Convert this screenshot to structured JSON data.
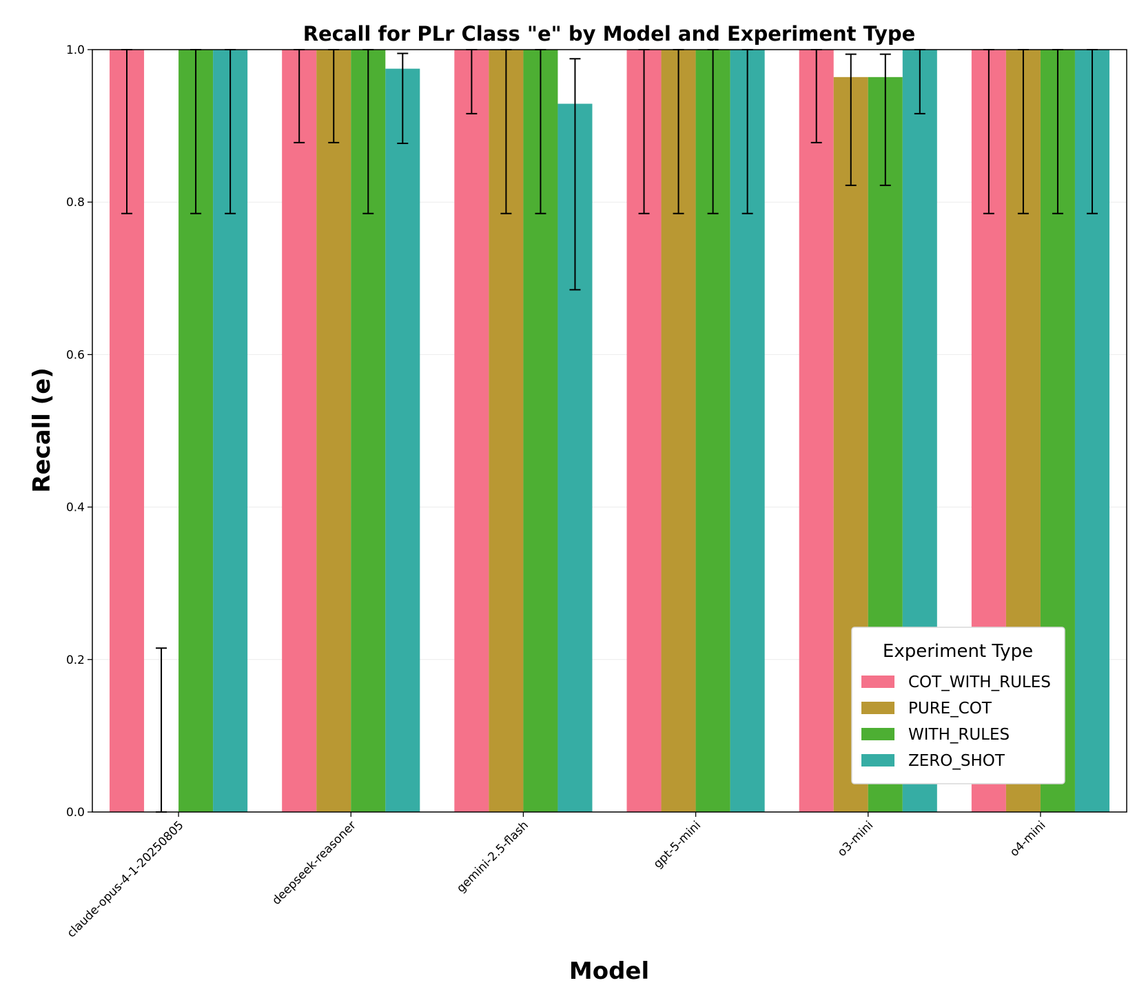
{
  "chart_data": {
    "type": "bar",
    "title": "Recall for PLr Class \"e\" by Model and Experiment Type",
    "xlabel": "Model",
    "ylabel": "Recall (e)",
    "ylim": [
      0,
      1.0
    ],
    "yticks": [
      "0.0",
      "0.2",
      "0.4",
      "0.6",
      "0.8",
      "1.0"
    ],
    "grid": true,
    "legend_title": "Experiment Type",
    "legend_position": "lower-right",
    "categories": [
      "claude-opus-4-1-20250805",
      "deepseek-reasoner",
      "gemini-2.5-flash",
      "gpt-5-mini",
      "o3-mini",
      "o4-mini"
    ],
    "series": [
      {
        "name": "COT_WITH_RULES",
        "color": "#f5728a",
        "values": [
          1.0,
          1.0,
          1.0,
          1.0,
          1.0,
          1.0
        ],
        "err_low": [
          0.785,
          0.878,
          0.916,
          0.785,
          0.878,
          0.785
        ],
        "err_high": [
          1.0,
          1.0,
          1.0,
          1.0,
          1.0,
          1.0
        ]
      },
      {
        "name": "PURE_COT",
        "color": "#b99833",
        "values": [
          0.0,
          1.0,
          1.0,
          1.0,
          0.964,
          1.0
        ],
        "err_low": [
          0.0,
          0.878,
          0.785,
          0.785,
          0.822,
          0.785
        ],
        "err_high": [
          0.215,
          1.0,
          1.0,
          1.0,
          0.994,
          1.0
        ]
      },
      {
        "name": "WITH_RULES",
        "color": "#4daf33",
        "values": [
          1.0,
          1.0,
          1.0,
          1.0,
          0.964,
          1.0
        ],
        "err_low": [
          0.785,
          0.785,
          0.785,
          0.785,
          0.822,
          0.785
        ],
        "err_high": [
          1.0,
          1.0,
          1.0,
          1.0,
          0.994,
          1.0
        ]
      },
      {
        "name": "ZERO_SHOT",
        "color": "#36ada4",
        "values": [
          1.0,
          0.975,
          0.929,
          1.0,
          1.0,
          1.0
        ],
        "err_low": [
          0.785,
          0.877,
          0.685,
          0.785,
          0.916,
          0.785
        ],
        "err_high": [
          1.0,
          0.995,
          0.988,
          1.0,
          1.0,
          1.0
        ]
      }
    ]
  }
}
